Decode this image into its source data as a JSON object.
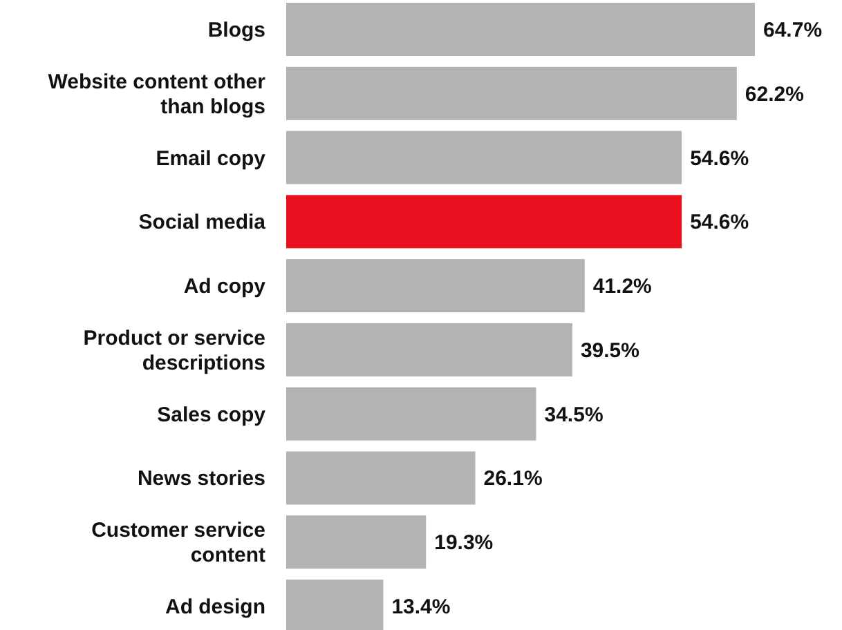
{
  "chart_data": {
    "type": "bar",
    "orientation": "horizontal",
    "categories": [
      "Blogs",
      "Website content other than blogs",
      "Email copy",
      "Social media",
      "Ad copy",
      "Product or service descriptions",
      "Sales copy",
      "News stories",
      "Customer service content",
      "Ad design"
    ],
    "values": [
      64.7,
      62.2,
      54.6,
      54.6,
      41.2,
      39.5,
      34.5,
      26.1,
      19.3,
      13.4
    ],
    "colors": [
      "#b3b3b3",
      "#b3b3b3",
      "#b3b3b3",
      "#e8101f",
      "#b3b3b3",
      "#b3b3b3",
      "#b3b3b3",
      "#b3b3b3",
      "#b3b3b3",
      "#b3b3b3"
    ],
    "value_labels": [
      "64.7%",
      "62.2%",
      "54.6%",
      "54.6%",
      "41.2%",
      "39.5%",
      "34.5%",
      "26.1%",
      "19.3%",
      "13.4%"
    ]
  }
}
